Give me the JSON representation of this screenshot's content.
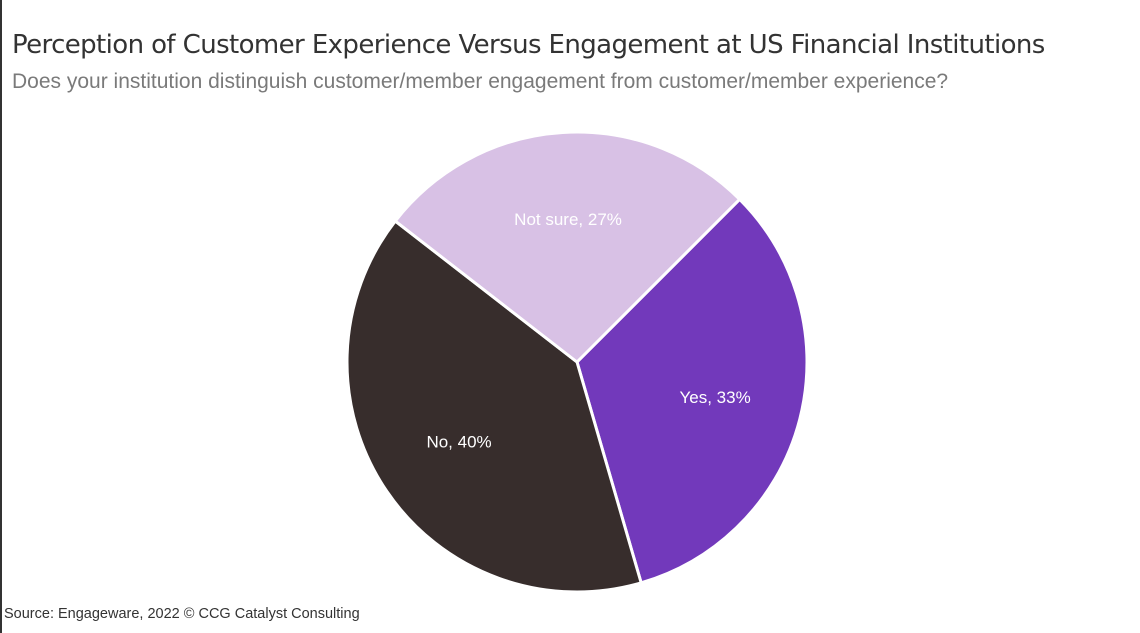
{
  "header": {
    "title": "Perception of Customer Experience Versus Engagement at US Financial Institutions",
    "subtitle": "Does your institution distinguish customer/member engagement from customer/member experience?"
  },
  "footer": {
    "source": "Source: Engageware, 2022 © CCG Catalyst Consulting"
  },
  "chart_data": {
    "type": "pie",
    "title": "Perception of Customer Experience Versus Engagement at US Financial Institutions",
    "subtitle": "Does your institution distinguish customer/member engagement from customer/member experience?",
    "start_angle_deg": 45,
    "direction": "clockwise",
    "slices": [
      {
        "label": "Yes",
        "value": 33,
        "data_label": "Yes, 33%",
        "color": "#7239bb"
      },
      {
        "label": "No",
        "value": 40,
        "data_label": "No, 40%",
        "color": "#372d2c"
      },
      {
        "label": "Not sure",
        "value": 27,
        "data_label": "Not sure, 27%",
        "color": "#d8c1e5"
      }
    ],
    "unit": "%",
    "legend": "none"
  }
}
